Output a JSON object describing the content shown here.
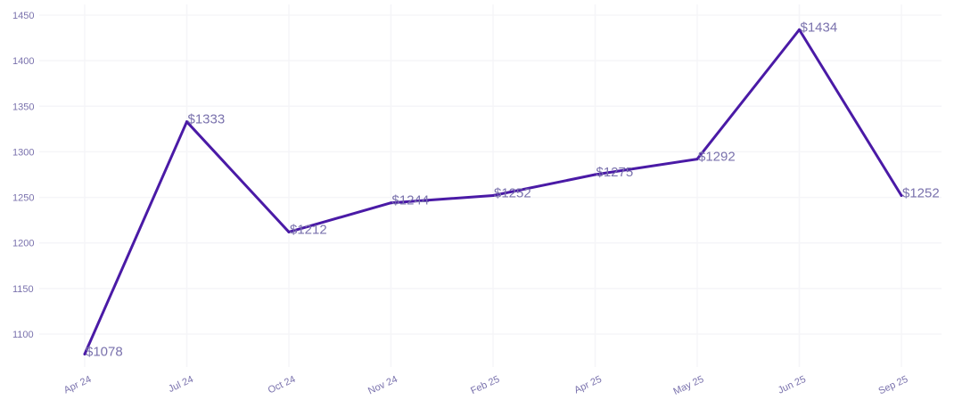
{
  "chart_data": {
    "type": "line",
    "title": "",
    "xlabel": "",
    "ylabel": "",
    "categories": [
      "Apr 24",
      "Jul 24",
      "Oct 24",
      "Nov 24",
      "Feb 25",
      "Apr 25",
      "May 25",
      "Jun 25",
      "Sep 25"
    ],
    "series": [
      {
        "values": [
          1078,
          1333,
          1212,
          1244,
          1252,
          1275,
          1292,
          1434,
          1252
        ],
        "data_labels": [
          "$1078",
          "$1333",
          "$1212",
          "$1244",
          "$1252",
          "$1275",
          "$1292",
          "$1434",
          "$1252"
        ]
      }
    ],
    "ylim": [
      1060,
      1450
    ],
    "yticks": [
      1100,
      1150,
      1200,
      1250,
      1300,
      1350,
      1400,
      1450
    ],
    "grid": true,
    "legend": "none",
    "colors": {
      "line": "#4a1aa6",
      "label": "#7a72ad",
      "grid": "#f5f5f8"
    }
  }
}
